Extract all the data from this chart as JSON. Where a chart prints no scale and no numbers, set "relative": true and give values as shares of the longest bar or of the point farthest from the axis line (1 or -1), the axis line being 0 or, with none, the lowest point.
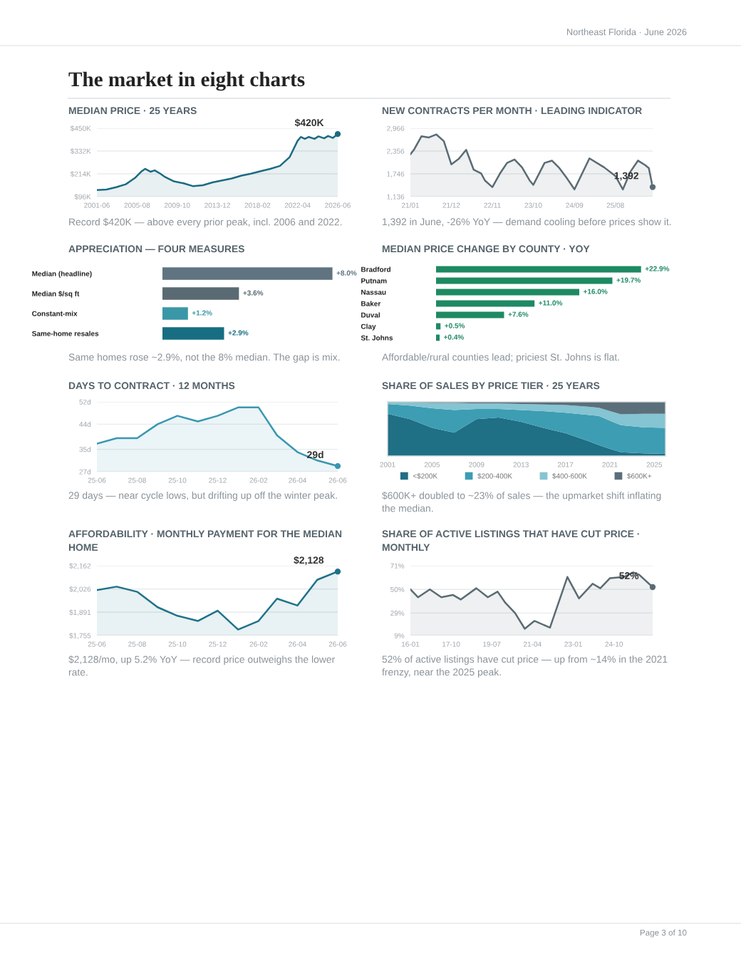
{
  "chart_data": [
    {
      "type": "other",
      "title": "The market in eight charts",
      "annotations": [
        "Northeast Florida · June 2026",
        "Page 3 of 10"
      ]
    },
    {
      "type": "area",
      "title": "MEDIAN PRICE · 25 YEARS",
      "grid": "y",
      "x": [
        "2001-06",
        "2002-06",
        "2003-06",
        "2004-06",
        "2005-06",
        "2006-01",
        "2006-06",
        "2007-01",
        "2007-06",
        "2008-01",
        "2008-06",
        "2009-06",
        "2010-06",
        "2011-06",
        "2012-06",
        "2013-06",
        "2014-06",
        "2015-06",
        "2016-06",
        "2017-06",
        "2018-06",
        "2019-06",
        "2020-06",
        "2021-06",
        "2022-04",
        "2022-08",
        "2023-01",
        "2023-06",
        "2024-01",
        "2024-06",
        "2025-01",
        "2025-06",
        "2025-12",
        "2026-06"
      ],
      "series": [
        {
          "color": "#1c6b80",
          "values": [
            130,
            133,
            145,
            160,
            195,
            225,
            240,
            225,
            232,
            215,
            200,
            175,
            165,
            150,
            155,
            170,
            180,
            190,
            205,
            215,
            228,
            240,
            255,
            300,
            385,
            405,
            395,
            405,
            395,
            408,
            398,
            410,
            400,
            420
          ]
        }
      ],
      "xlim": [
        "2001-06",
        "2026-06"
      ],
      "ylim": [
        96,
        450
      ],
      "xticks": [
        {
          "value": "2001-06",
          "label": "2001-06"
        },
        {
          "value": "2005-08",
          "label": "2005-08"
        },
        {
          "value": "2009-10",
          "label": "2009-10"
        },
        {
          "value": "2013-12",
          "label": "2013-12"
        },
        {
          "value": "2018-02",
          "label": "2018-02"
        },
        {
          "value": "2022-04",
          "label": "2022-04"
        },
        {
          "value": "2026-06",
          "label": "2026-06"
        }
      ],
      "yticks": [
        {
          "value": 96,
          "label": "$96K"
        },
        {
          "value": 214,
          "label": "$214K"
        },
        {
          "value": 332,
          "label": "$332K"
        },
        {
          "value": 450,
          "label": "$450K"
        }
      ],
      "annotations": [
        {
          "text": "$420K",
          "x": "2026-06",
          "y": 420
        },
        "Record $420K — above every prior peak, incl. 2006 and 2022."
      ]
    },
    {
      "type": "area",
      "title": "NEW CONTRACTS PER MONTH · LEADING INDICATOR",
      "grid": "y",
      "x": [
        "2021-01",
        "2021-02",
        "2021-04",
        "2021-06",
        "2021-08",
        "2021-10",
        "2021-12",
        "2022-02",
        "2022-04",
        "2022-06",
        "2022-08",
        "2022-09",
        "2022-11",
        "2023-01",
        "2023-03",
        "2023-05",
        "2023-07",
        "2023-09",
        "2023-10",
        "2024-01",
        "2024-03",
        "2024-05",
        "2024-07",
        "2024-09",
        "2025-01",
        "2025-05",
        "2025-08",
        "2025-10",
        "2025-12",
        "2026-02",
        "2026-04",
        "2026-05",
        "2026-06"
      ],
      "series": [
        {
          "color": "#5a6b74",
          "values": [
            2270,
            2400,
            2750,
            2720,
            2800,
            2620,
            2000,
            2150,
            2390,
            1860,
            1760,
            1570,
            1390,
            1750,
            2040,
            2130,
            1920,
            1570,
            1450,
            2040,
            2100,
            1900,
            1630,
            1330,
            2160,
            1920,
            1690,
            1330,
            1800,
            2100,
            1980,
            1900,
            1392
          ]
        }
      ],
      "xlim": [
        "2021-01",
        "2026-06"
      ],
      "ylim": [
        1136,
        2966
      ],
      "xticks": [
        {
          "value": "2021-01",
          "label": "21/01"
        },
        {
          "value": "2021-12",
          "label": "21/12"
        },
        {
          "value": "2022-11",
          "label": "22/11"
        },
        {
          "value": "2023-10",
          "label": "23/10"
        },
        {
          "value": "2024-09",
          "label": "24/09"
        },
        {
          "value": "2025-08",
          "label": "25/08"
        }
      ],
      "yticks": [
        {
          "value": 1136,
          "label": "1,136"
        },
        {
          "value": 1746,
          "label": "1,746"
        },
        {
          "value": 2356,
          "label": "2,356"
        },
        {
          "value": 2966,
          "label": "2,966"
        }
      ],
      "annotations": [
        {
          "text": "1,392",
          "x": "2026-06",
          "y": 1392
        },
        "1,392 in June, -26% YoY — demand cooling before prices show it."
      ]
    },
    {
      "type": "bar",
      "orientation": "horizontal",
      "title": "APPRECIATION — FOUR MEASURES",
      "categories": [
        "Median (headline)",
        "Median $/sq ft",
        "Constant-mix",
        "Same-home resales"
      ],
      "values": [
        8.0,
        3.6,
        1.2,
        2.9
      ],
      "colors": [
        "#5f7480",
        "#5a6a72",
        "#3a97a8",
        "#176e82"
      ],
      "value_labels": [
        "+8.0%",
        "+3.6%",
        "+1.2%",
        "+2.9%"
      ],
      "annotations": [
        "Same homes rose ~2.9%, not the 8% median. The gap is mix."
      ]
    },
    {
      "type": "bar",
      "orientation": "horizontal",
      "title": "MEDIAN PRICE CHANGE BY COUNTY · YOY",
      "categories": [
        "Bradford",
        "Putnam",
        "Nassau",
        "Baker",
        "Duval",
        "Clay",
        "St. Johns"
      ],
      "values": [
        22.9,
        19.7,
        16.0,
        11.0,
        7.6,
        0.5,
        0.4
      ],
      "colors": [
        "#1e8a62",
        "#1e8a62",
        "#1e8a62",
        "#1e8a62",
        "#1e8a62",
        "#1e8a62",
        "#1e8a62"
      ],
      "value_labels": [
        "+22.9%",
        "+19.7%",
        "+16.0%",
        "+11.0%",
        "+7.6%",
        "+0.5%",
        "+0.4%"
      ],
      "annotations": [
        "Affordable/rural counties lead; priciest St. Johns is flat."
      ]
    },
    {
      "type": "area",
      "title": "DAYS TO CONTRACT · 12 MONTHS",
      "grid": "y",
      "x": [
        "2025-06",
        "2025-07",
        "2025-08",
        "2025-09",
        "2025-10",
        "2025-11",
        "2025-12",
        "2026-01",
        "2026-02",
        "2026-03",
        "2026-04",
        "2026-05",
        "2026-06"
      ],
      "series": [
        {
          "color": "#3a97b0",
          "values": [
            37,
            39,
            39,
            44,
            47,
            45,
            47,
            50,
            50,
            40,
            34,
            31,
            29
          ]
        }
      ],
      "xlim": [
        "2025-06",
        "2026-06"
      ],
      "ylim": [
        27,
        52
      ],
      "xticks": [
        {
          "value": "2025-06",
          "label": "25-06"
        },
        {
          "value": "2025-08",
          "label": "25-08"
        },
        {
          "value": "2025-10",
          "label": "25-10"
        },
        {
          "value": "2025-12",
          "label": "25-12"
        },
        {
          "value": "2026-02",
          "label": "26-02"
        },
        {
          "value": "2026-04",
          "label": "26-04"
        },
        {
          "value": "2026-06",
          "label": "26-06"
        }
      ],
      "yticks": [
        {
          "value": 27,
          "label": "27d"
        },
        {
          "value": 35,
          "label": "35d"
        },
        {
          "value": 44,
          "label": "44d"
        },
        {
          "value": 52,
          "label": "52d"
        }
      ],
      "annotations": [
        {
          "text": "29d",
          "x": "2026-06",
          "y": 29
        },
        "29 days — near cycle lows, but drifting up off the winter peak."
      ]
    },
    {
      "type": "area",
      "stacked": true,
      "relative": true,
      "title": "SHARE OF SALES BY PRICE TIER · 25 YEARS",
      "legend": "bottom",
      "x": [
        2001,
        2003,
        2005,
        2007,
        2009,
        2011,
        2013,
        2015,
        2017,
        2019,
        2020,
        2021,
        2022,
        2024,
        2026
      ],
      "series": [
        {
          "name": "<$200K",
          "color": "#1f6f85",
          "values": [
            0.78,
            0.68,
            0.52,
            0.43,
            0.68,
            0.71,
            0.63,
            0.52,
            0.42,
            0.28,
            0.2,
            0.13,
            0.07,
            0.05,
            0.04
          ]
        },
        {
          "name": "$200-400K",
          "color": "#3d9db3",
          "values": [
            0.18,
            0.25,
            0.36,
            0.42,
            0.19,
            0.16,
            0.22,
            0.31,
            0.38,
            0.48,
            0.54,
            0.52,
            0.5,
            0.48,
            0.48
          ]
        },
        {
          "name": "$400-600K",
          "color": "#85c4d2",
          "values": [
            0.03,
            0.06,
            0.1,
            0.13,
            0.1,
            0.1,
            0.11,
            0.12,
            0.14,
            0.15,
            0.15,
            0.18,
            0.2,
            0.25,
            0.26
          ]
        },
        {
          "name": "$600K+",
          "color": "#5b6f7a",
          "values": [
            0.01,
            0.01,
            0.02,
            0.02,
            0.03,
            0.03,
            0.04,
            0.05,
            0.06,
            0.09,
            0.11,
            0.17,
            0.23,
            0.22,
            0.22
          ]
        }
      ],
      "xlim": [
        2001,
        2026
      ],
      "xticks": [
        2001,
        2005,
        2009,
        2013,
        2017,
        2021,
        2025
      ],
      "annotations": [
        "$600K+ doubled to ~23% of sales — the upmarket shift inflating the median."
      ]
    },
    {
      "type": "area",
      "title": "AFFORDABILITY · MONTHLY PAYMENT FOR THE MEDIAN HOME",
      "grid": "y",
      "x": [
        "2025-06",
        "2025-07",
        "2025-08",
        "2025-09",
        "2025-10",
        "2025-11",
        "2025-12",
        "2026-01",
        "2026-02",
        "2026-03",
        "2026-04",
        "2026-05",
        "2026-06"
      ],
      "series": [
        {
          "color": "#1f7289",
          "values": [
            2020,
            2040,
            2010,
            1920,
            1870,
            1840,
            1900,
            1790,
            1840,
            1970,
            1930,
            2080,
            2128
          ]
        }
      ],
      "xlim": [
        "2025-06",
        "2026-06"
      ],
      "ylim": [
        1755,
        2162
      ],
      "xticks": [
        {
          "value": "2025-06",
          "label": "25-06"
        },
        {
          "value": "2025-08",
          "label": "25-08"
        },
        {
          "value": "2025-10",
          "label": "25-10"
        },
        {
          "value": "2025-12",
          "label": "25-12"
        },
        {
          "value": "2026-02",
          "label": "26-02"
        },
        {
          "value": "2026-04",
          "label": "26-04"
        },
        {
          "value": "2026-06",
          "label": "26-06"
        }
      ],
      "yticks": [
        {
          "value": 1755,
          "label": "$1,755"
        },
        {
          "value": 1891,
          "label": "$1,891"
        },
        {
          "value": 2026,
          "label": "$2,026"
        },
        {
          "value": 2162,
          "label": "$2,162"
        }
      ],
      "annotations": [
        {
          "text": "$2,128",
          "x": "2026-06",
          "y": 2128
        },
        "$2,128/mo, up 5.2% YoY — record price outweighs the lower rate."
      ]
    },
    {
      "type": "area",
      "title": "SHARE OF ACTIVE LISTINGS THAT HAVE CUT PRICE · MONTHLY",
      "grid": "y",
      "x": [
        "2016-01",
        "2016-05",
        "2016-11",
        "2017-05",
        "2017-11",
        "2018-03",
        "2018-11",
        "2019-05",
        "2019-10",
        "2020-02",
        "2020-07",
        "2020-12",
        "2021-05",
        "2022-01",
        "2022-10",
        "2023-04",
        "2023-11",
        "2024-03",
        "2024-08",
        "2025-03",
        "2025-08",
        "2025-11",
        "2026-06"
      ],
      "series": [
        {
          "color": "#5b6b73",
          "values": [
            50,
            43,
            50,
            43,
            45,
            41,
            51,
            43,
            48,
            38,
            29,
            15,
            22,
            16,
            61,
            42,
            55,
            51,
            60,
            61,
            65,
            63,
            52
          ]
        }
      ],
      "xlim": [
        "2016-01",
        "2026-06"
      ],
      "ylim": [
        9,
        71
      ],
      "xticks": [
        {
          "value": "2016-01",
          "label": "16-01"
        },
        {
          "value": "2017-10",
          "label": "17-10"
        },
        {
          "value": "2019-07",
          "label": "19-07"
        },
        {
          "value": "2021-04",
          "label": "21-04"
        },
        {
          "value": "2023-01",
          "label": "23-01"
        },
        {
          "value": "2024-10",
          "label": "24-10"
        }
      ],
      "yticks": [
        {
          "value": 9,
          "label": "9%"
        },
        {
          "value": 29,
          "label": "29%"
        },
        {
          "value": 50,
          "label": "50%"
        },
        {
          "value": 71,
          "label": "71%"
        }
      ],
      "annotations": [
        {
          "text": "52%",
          "x": "2026-06",
          "y": 52
        },
        "52% of active listings have cut price — up from ~14% in the 2021 frenzy, near the 2025 peak."
      ]
    }
  ]
}
